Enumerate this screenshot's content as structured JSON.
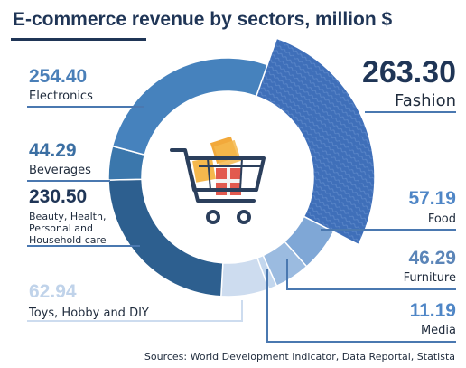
{
  "chart_data": {
    "type": "pie",
    "title": "E-commerce revenue by sectors, million $",
    "source": "Sources: World Development Indicator, Data Reportal, Statista",
    "donut": true,
    "categories": [
      "Fashion",
      "Food",
      "Furniture",
      "Media",
      "Toys, Hobby and DIY",
      "Beauty, Health, Personal and Household care",
      "Beverages",
      "Electronics"
    ],
    "values": [
      263.3,
      57.19,
      46.29,
      11.19,
      62.94,
      230.5,
      44.29,
      254.4
    ],
    "value_labels": [
      "263.30",
      "57.19",
      "46.29",
      "11.19",
      "62.94",
      "230.50",
      "44.29",
      "254.40"
    ],
    "label_lines": [
      [
        "Fashion"
      ],
      [
        "Food"
      ],
      [
        "Furniture"
      ],
      [
        "Media"
      ],
      [
        "Toys, Hobby and DIY"
      ],
      [
        "Beauty, Health,",
        "Personal and",
        "Household care"
      ],
      [
        "Beverages"
      ],
      [
        "Electronics"
      ]
    ],
    "colors": [
      "#3f6fb9",
      "#7fa7d6",
      "#9bbbe0",
      "#c3d7ee",
      "#cddcef",
      "#2d5f8f",
      "#3b77ac",
      "#4682bd"
    ],
    "center_icon": "shopping-cart-icon"
  }
}
